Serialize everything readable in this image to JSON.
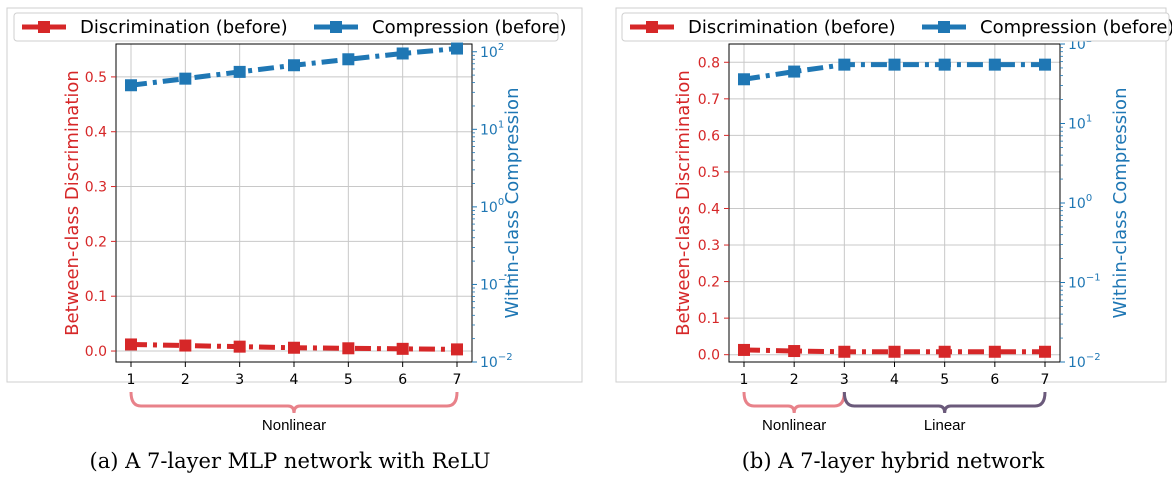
{
  "chart_data": [
    {
      "type": "line",
      "x": [
        1,
        2,
        3,
        4,
        5,
        6,
        7
      ],
      "xticks": [
        "1",
        "2",
        "3",
        "4",
        "5",
        "6",
        "7"
      ],
      "left_ylabel": "Between-class Discrimination",
      "right_ylabel": "Within-class Compression",
      "left_ylim": [
        -0.02,
        0.56
      ],
      "left_yticks": [
        "0.0",
        "0.1",
        "0.2",
        "0.3",
        "0.4",
        "0.5"
      ],
      "left_ytick_values": [
        0,
        0.1,
        0.2,
        0.3,
        0.4,
        0.5
      ],
      "right_scale": "log",
      "right_ylim_exp": [
        -2,
        2.1
      ],
      "right_yticks": [
        {
          "base": "10",
          "exp": "−2",
          "e": -2
        },
        {
          "base": "10",
          "exp": "−1",
          "e": -1
        },
        {
          "base": "10",
          "exp": "0",
          "e": 0
        },
        {
          "base": "10",
          "exp": "1",
          "e": 1
        },
        {
          "base": "10",
          "exp": "2",
          "e": 2
        }
      ],
      "series": [
        {
          "name": "Discrimination (before)",
          "axis": "left",
          "color": "#d62728",
          "values": [
            0.012,
            0.01,
            0.008,
            0.006,
            0.005,
            0.004,
            0.003
          ]
        },
        {
          "name": "Compression (before)",
          "axis": "right",
          "color": "#1f77b4",
          "values": [
            37,
            45,
            55,
            67,
            80,
            95,
            110
          ]
        }
      ],
      "legend_placement": "top",
      "grid": true,
      "brackets": [
        {
          "label": "Nonlinear",
          "from": 1,
          "to": 7,
          "color": "#e8828a"
        }
      ],
      "caption": "(a) A 7-layer MLP network with ReLU"
    },
    {
      "type": "line",
      "x": [
        1,
        2,
        3,
        4,
        5,
        6,
        7
      ],
      "xticks": [
        "1",
        "2",
        "3",
        "4",
        "5",
        "6",
        "7"
      ],
      "left_ylabel": "Between-class Discrimination",
      "right_ylabel": "Within-class Compression",
      "left_ylim": [
        -0.02,
        0.85
      ],
      "left_yticks": [
        "0.0",
        "0.1",
        "0.2",
        "0.3",
        "0.4",
        "0.5",
        "0.6",
        "0.7",
        "0.8"
      ],
      "left_ytick_values": [
        0,
        0.1,
        0.2,
        0.3,
        0.4,
        0.5,
        0.6,
        0.7,
        0.8
      ],
      "right_scale": "log",
      "right_ylim_exp": [
        -2,
        2
      ],
      "right_yticks": [
        {
          "base": "10",
          "exp": "−2",
          "e": -2
        },
        {
          "base": "10",
          "exp": "−1",
          "e": -1
        },
        {
          "base": "10",
          "exp": "0",
          "e": 0
        },
        {
          "base": "10",
          "exp": "1",
          "e": 1
        },
        {
          "base": "10",
          "exp": "2",
          "e": 2
        }
      ],
      "series": [
        {
          "name": "Discrimination (before)",
          "axis": "left",
          "color": "#d62728",
          "values": [
            0.013,
            0.01,
            0.008,
            0.008,
            0.008,
            0.008,
            0.008
          ]
        },
        {
          "name": "Compression (before)",
          "axis": "right",
          "color": "#1f77b4",
          "values": [
            36,
            45,
            55,
            55,
            55,
            55,
            55
          ]
        }
      ],
      "legend_placement": "top",
      "grid": true,
      "brackets": [
        {
          "label": "Nonlinear",
          "from": 1,
          "to": 3,
          "color": "#e8828a"
        },
        {
          "label": "Linear",
          "from": 3,
          "to": 7,
          "color": "#6b5a7b"
        }
      ],
      "caption": "(b) A 7-layer hybrid network"
    }
  ]
}
